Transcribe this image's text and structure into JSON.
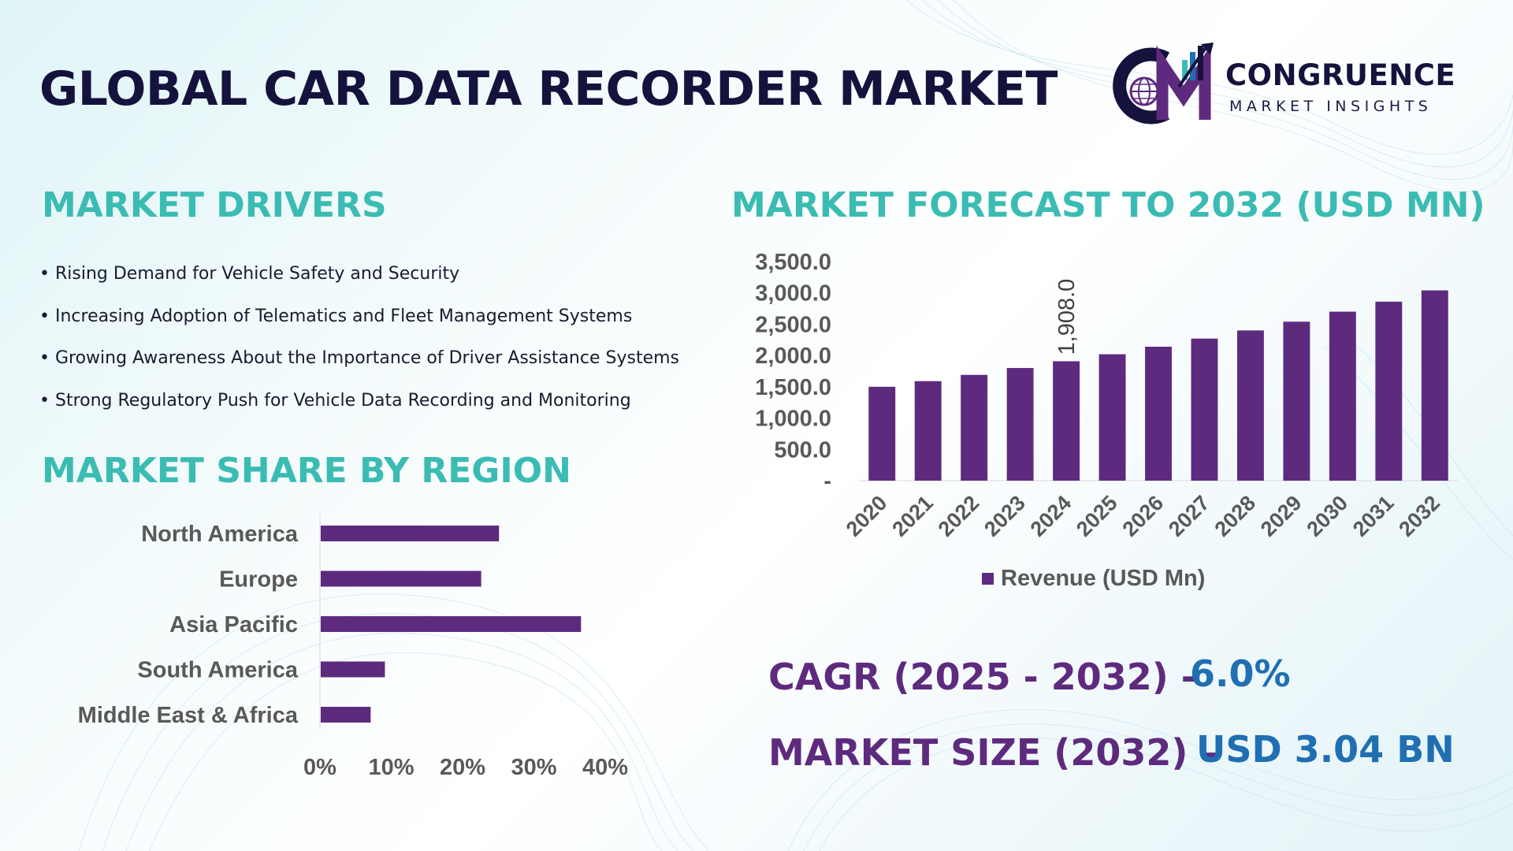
{
  "title": "GLOBAL CAR DATA RECORDER MARKET",
  "logo": {
    "initials": "CM",
    "name": "CONGRUENCE",
    "tagline": "MARKET INSIGHTS"
  },
  "drivers": {
    "heading": "MARKET DRIVERS",
    "items": [
      "Rising Demand for Vehicle Safety and Security",
      "Increasing Adoption of Telematics and Fleet Management Systems",
      "Growing Awareness About the Importance of Driver Assistance Systems",
      "Strong Regulatory Push for Vehicle Data Recording and Monitoring"
    ]
  },
  "region": {
    "heading": "MARKET SHARE BY REGION"
  },
  "forecast": {
    "heading": "MARKET FORECAST TO 2032 (USD MN)"
  },
  "stats": {
    "cagr_label": "CAGR (2025 - 2032) -",
    "cagr_value": "6.0%",
    "size_label": "MARKET SIZE (2032) –",
    "size_value": "USD 3.04 BN"
  },
  "colors": {
    "bar": "#5e2a7e",
    "heading": "#3bbcb3",
    "title": "#15123d",
    "stat_label": "#5e2a7e",
    "stat_value": "#1f6fb2"
  },
  "chart_data": [
    {
      "type": "bar",
      "orientation": "vertical",
      "categories": [
        "2020",
        "2021",
        "2022",
        "2023",
        "2024",
        "2025",
        "2026",
        "2027",
        "2028",
        "2029",
        "2030",
        "2031",
        "2032"
      ],
      "series": [
        {
          "name": "Revenue (USD Mn)",
          "values": [
            1500,
            1590,
            1690,
            1800,
            1908,
            2020,
            2140,
            2270,
            2400,
            2540,
            2700,
            2860,
            3040
          ]
        }
      ],
      "data_labels": [
        {
          "category": "2024",
          "label": "1,908.0"
        }
      ],
      "y_ticks": [
        "-",
        "500.0",
        "1,000.0",
        "1,500.0",
        "2,000.0",
        "2,500.0",
        "3,000.0",
        "3,500.0"
      ],
      "ylim": [
        0,
        3500
      ],
      "legend": "bottom",
      "grid": false
    },
    {
      "type": "bar",
      "orientation": "horizontal",
      "categories": [
        "North America",
        "Europe",
        "Asia Pacific",
        "South America",
        "Middle East & Africa"
      ],
      "values": [
        0.25,
        0.225,
        0.365,
        0.09,
        0.07
      ],
      "x_ticks": [
        "0%",
        "10%",
        "20%",
        "30%",
        "40%"
      ],
      "xlim": [
        0,
        0.4
      ],
      "grid": false
    }
  ]
}
